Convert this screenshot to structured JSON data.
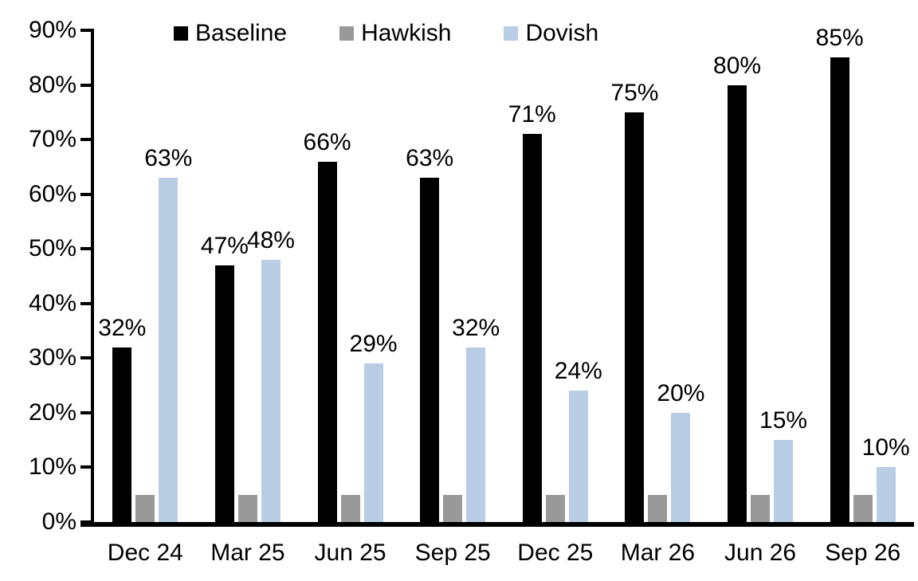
{
  "chart_data": {
    "type": "bar",
    "title": "",
    "categories": [
      "Dec 24",
      "Mar 25",
      "Jun 25",
      "Sep 25",
      "Dec 25",
      "Mar 26",
      "Jun 26",
      "Sep 26"
    ],
    "series": [
      {
        "name": "Baseline",
        "color": "#000000",
        "values": [
          32,
          47,
          66,
          63,
          71,
          75,
          80,
          85
        ],
        "data_labels": [
          "32%",
          "47%",
          "66%",
          "63%",
          "71%",
          "75%",
          "80%",
          "85%"
        ]
      },
      {
        "name": "Hawkish",
        "color": "#999999",
        "values": [
          5,
          5,
          5,
          5,
          5,
          5,
          5,
          5
        ],
        "data_labels": [
          "",
          "",
          "",
          "",
          "",
          "",
          "",
          ""
        ]
      },
      {
        "name": "Dovish",
        "color": "#B9CDE5",
        "values": [
          63,
          48,
          29,
          32,
          24,
          20,
          15,
          10
        ],
        "data_labels": [
          "63%",
          "48%",
          "29%",
          "32%",
          "24%",
          "20%",
          "15%",
          "10%"
        ]
      }
    ],
    "y_axis": {
      "min": 0,
      "max": 90,
      "step": 10,
      "tick_labels": [
        "0%",
        "10%",
        "20%",
        "30%",
        "40%",
        "50%",
        "60%",
        "70%",
        "80%",
        "90%"
      ]
    },
    "legend_position": "top",
    "grid": false,
    "axis_color": "#000000"
  }
}
